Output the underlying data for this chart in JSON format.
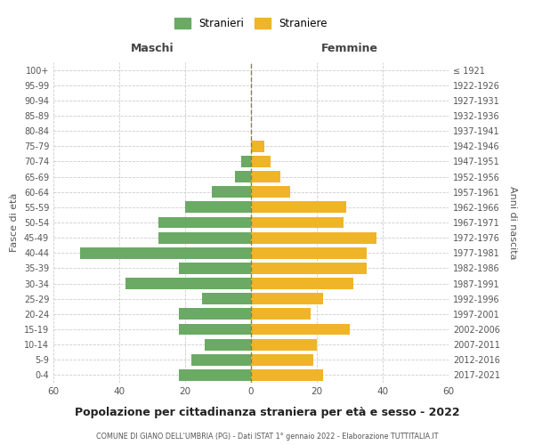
{
  "age_groups": [
    "0-4",
    "5-9",
    "10-14",
    "15-19",
    "20-24",
    "25-29",
    "30-34",
    "35-39",
    "40-44",
    "45-49",
    "50-54",
    "55-59",
    "60-64",
    "65-69",
    "70-74",
    "75-79",
    "80-84",
    "85-89",
    "90-94",
    "95-99",
    "100+"
  ],
  "birth_years": [
    "2017-2021",
    "2012-2016",
    "2007-2011",
    "2002-2006",
    "1997-2001",
    "1992-1996",
    "1987-1991",
    "1982-1986",
    "1977-1981",
    "1972-1976",
    "1967-1971",
    "1962-1966",
    "1957-1961",
    "1952-1956",
    "1947-1951",
    "1942-1946",
    "1937-1941",
    "1932-1936",
    "1927-1931",
    "1922-1926",
    "≤ 1921"
  ],
  "maschi": [
    22,
    18,
    14,
    22,
    22,
    15,
    38,
    22,
    52,
    28,
    28,
    20,
    12,
    5,
    3,
    0,
    0,
    0,
    0,
    0,
    0
  ],
  "femmine": [
    22,
    19,
    20,
    30,
    18,
    22,
    31,
    35,
    35,
    38,
    28,
    29,
    12,
    9,
    6,
    4,
    0,
    0,
    0,
    0,
    0
  ],
  "maschi_color": "#6aaa64",
  "femmine_color": "#f0b429",
  "background_color": "#ffffff",
  "grid_color": "#cccccc",
  "title": "Popolazione per cittadinanza straniera per età e sesso - 2022",
  "subtitle": "COMUNE DI GIANO DELL'UMBRIA (PG) - Dati ISTAT 1° gennaio 2022 - Elaborazione TUTTITALIA.IT",
  "xlabel_left": "Maschi",
  "xlabel_right": "Femmine",
  "ylabel_left": "Fasce di età",
  "ylabel_right": "Anni di nascita",
  "legend_maschi": "Stranieri",
  "legend_femmine": "Straniere",
  "xlim": 60
}
